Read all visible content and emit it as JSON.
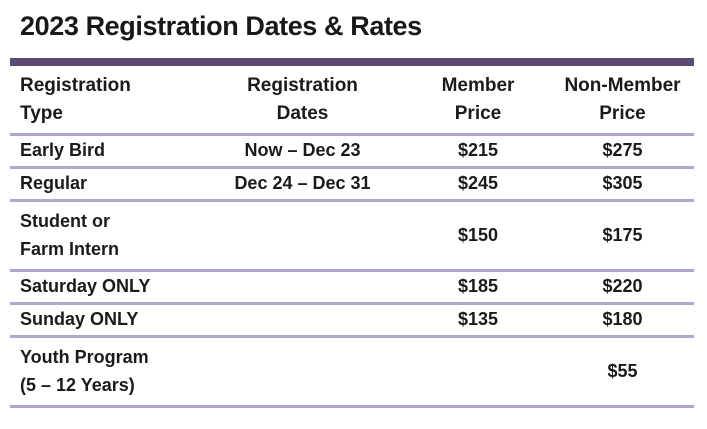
{
  "page": {
    "title": "2023 Registration Dates & Rates"
  },
  "colors": {
    "accent_dark_purple": "#5b4a73",
    "accent_light_lavender": "#b3a6cc",
    "text": "#1b1b1b",
    "background": "#ffffff"
  },
  "table": {
    "headers": [
      [
        "Registration",
        "Type"
      ],
      [
        "Registration",
        "Dates"
      ],
      [
        "Member",
        "Price"
      ],
      [
        "Non-Member",
        "Price"
      ]
    ],
    "rows": [
      {
        "type": [
          "Early Bird"
        ],
        "dates": "Now – Dec 23",
        "member_price": "$215",
        "non_member_price": "$275"
      },
      {
        "type": [
          "Regular"
        ],
        "dates": "Dec 24 – Dec 31",
        "member_price": "$245",
        "non_member_price": "$305"
      },
      {
        "type": [
          "Student or",
          "Farm Intern"
        ],
        "dates": "",
        "member_price": "$150",
        "non_member_price": "$175"
      },
      {
        "type": [
          "Saturday ONLY"
        ],
        "dates": "",
        "member_price": "$185",
        "non_member_price": "$220"
      },
      {
        "type": [
          "Sunday ONLY"
        ],
        "dates": "",
        "member_price": "$135",
        "non_member_price": "$180"
      },
      {
        "type": [
          "Youth Program",
          "(5 – 12 Years)"
        ],
        "dates": "",
        "member_price": "",
        "non_member_price": "$55"
      }
    ]
  }
}
